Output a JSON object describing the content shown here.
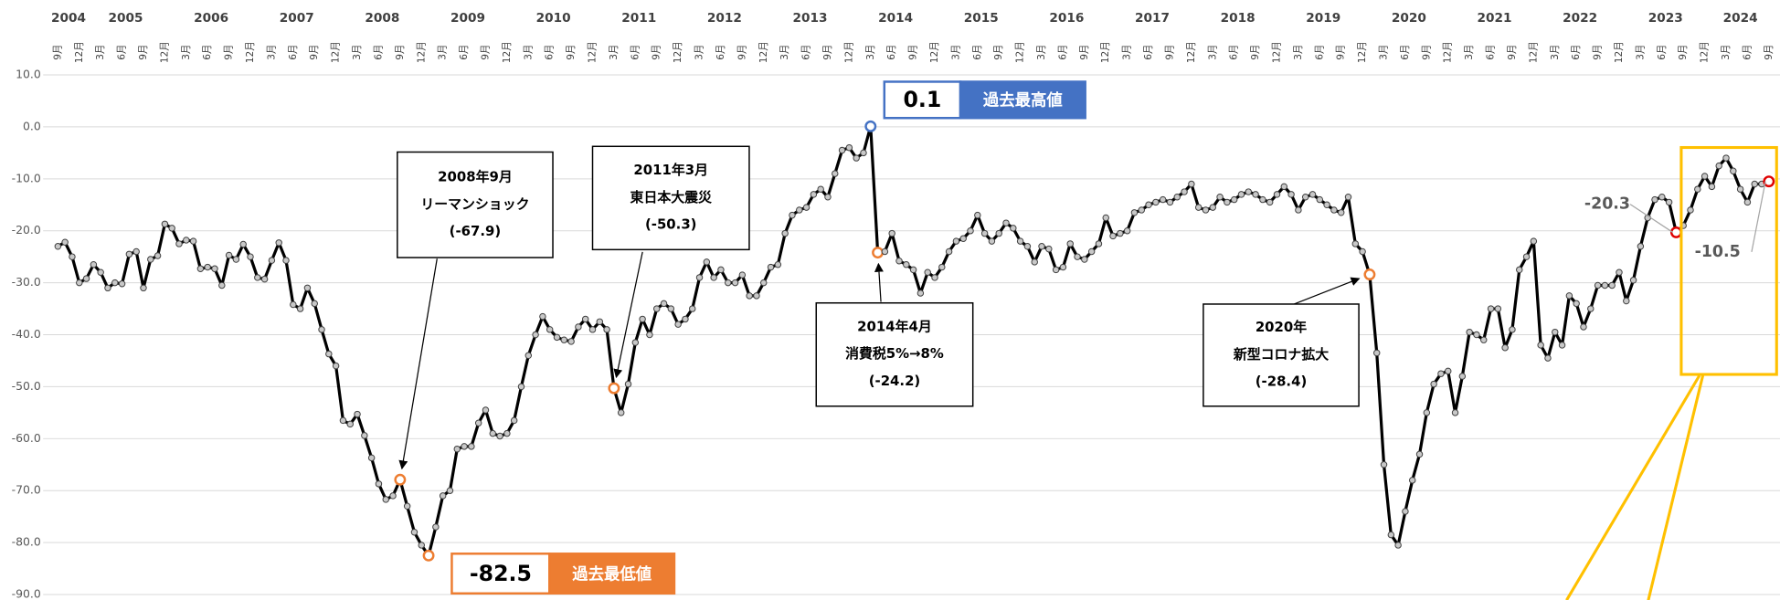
{
  "chart_data": {
    "type": "line",
    "x": [
      "2004-09",
      "2004-10",
      "2004-11",
      "2004-12",
      "2005-01",
      "2005-02",
      "2005-03",
      "2005-04",
      "2005-05",
      "2005-06",
      "2005-07",
      "2005-08",
      "2005-09",
      "2005-10",
      "2005-11",
      "2005-12",
      "2006-01",
      "2006-02",
      "2006-03",
      "2006-04",
      "2006-05",
      "2006-06",
      "2006-07",
      "2006-08",
      "2006-09",
      "2006-10",
      "2006-11",
      "2006-12",
      "2007-01",
      "2007-02",
      "2007-03",
      "2007-04",
      "2007-05",
      "2007-06",
      "2007-07",
      "2007-08",
      "2007-09",
      "2007-10",
      "2007-11",
      "2007-12",
      "2008-01",
      "2008-02",
      "2008-03",
      "2008-04",
      "2008-05",
      "2008-06",
      "2008-07",
      "2008-08",
      "2008-09",
      "2008-10",
      "2008-11",
      "2008-12",
      "2009-01",
      "2009-02",
      "2009-03",
      "2009-04",
      "2009-05",
      "2009-06",
      "2009-07",
      "2009-08",
      "2009-09",
      "2009-10",
      "2009-11",
      "2009-12",
      "2010-01",
      "2010-02",
      "2010-03",
      "2010-04",
      "2010-05",
      "2010-06",
      "2010-07",
      "2010-08",
      "2010-09",
      "2010-10",
      "2010-11",
      "2010-12",
      "2011-01",
      "2011-02",
      "2011-03",
      "2011-04",
      "2011-05",
      "2011-06",
      "2011-07",
      "2011-08",
      "2011-09",
      "2011-10",
      "2011-11",
      "2011-12",
      "2012-01",
      "2012-02",
      "2012-03",
      "2012-04",
      "2012-05",
      "2012-06",
      "2012-07",
      "2012-08",
      "2012-09",
      "2012-10",
      "2012-11",
      "2012-12",
      "2013-01",
      "2013-02",
      "2013-03",
      "2013-04",
      "2013-05",
      "2013-06",
      "2013-07",
      "2013-08",
      "2013-09",
      "2013-10",
      "2013-11",
      "2013-12",
      "2014-01",
      "2014-02",
      "2014-03",
      "2014-04",
      "2014-05",
      "2014-06",
      "2014-07",
      "2014-08",
      "2014-09",
      "2014-10",
      "2014-11",
      "2014-12",
      "2015-01",
      "2015-02",
      "2015-03",
      "2015-04",
      "2015-05",
      "2015-06",
      "2015-07",
      "2015-08",
      "2015-09",
      "2015-10",
      "2015-11",
      "2015-12",
      "2016-01",
      "2016-02",
      "2016-03",
      "2016-04",
      "2016-05",
      "2016-06",
      "2016-07",
      "2016-08",
      "2016-09",
      "2016-10",
      "2016-11",
      "2016-12",
      "2017-01",
      "2017-02",
      "2017-03",
      "2017-04",
      "2017-05",
      "2017-06",
      "2017-07",
      "2017-08",
      "2017-09",
      "2017-10",
      "2017-11",
      "2017-12",
      "2018-01",
      "2018-02",
      "2018-03",
      "2018-04",
      "2018-05",
      "2018-06",
      "2018-07",
      "2018-08",
      "2018-09",
      "2018-10",
      "2018-11",
      "2018-12",
      "2019-01",
      "2019-02",
      "2019-03",
      "2019-04",
      "2019-05",
      "2019-06",
      "2019-07",
      "2019-08",
      "2019-09",
      "2019-10",
      "2019-11",
      "2019-12",
      "2020-01",
      "2020-02",
      "2020-03",
      "2020-04",
      "2020-05",
      "2020-06",
      "2020-07",
      "2020-08",
      "2020-09",
      "2020-10",
      "2020-11",
      "2020-12",
      "2021-01",
      "2021-02",
      "2021-03",
      "2021-04",
      "2021-05",
      "2021-06",
      "2021-07",
      "2021-08",
      "2021-09",
      "2021-10",
      "2021-11",
      "2021-12",
      "2022-01",
      "2022-02",
      "2022-03",
      "2022-04",
      "2022-05",
      "2022-06",
      "2022-07",
      "2022-08",
      "2022-09",
      "2022-10",
      "2022-11",
      "2022-12",
      "2023-01",
      "2023-02",
      "2023-03",
      "2023-04",
      "2023-05",
      "2023-06",
      "2023-07",
      "2023-08",
      "2023-09",
      "2023-10",
      "2023-11",
      "2023-12",
      "2024-01",
      "2024-02",
      "2024-03",
      "2024-04",
      "2024-05",
      "2024-06",
      "2024-07",
      "2024-08",
      "2024-09"
    ],
    "values": [
      -23.0,
      -22.2,
      -25.0,
      -30.0,
      -29.2,
      -26.5,
      -28.0,
      -31.0,
      -30.0,
      -30.2,
      -24.5,
      -24.0,
      -31.0,
      -25.5,
      -24.8,
      -18.7,
      -19.5,
      -22.5,
      -21.8,
      -22.0,
      -27.3,
      -27.0,
      -27.3,
      -30.5,
      -24.7,
      -25.5,
      -22.6,
      -25.0,
      -29.0,
      -29.3,
      -25.7,
      -22.3,
      -25.7,
      -34.2,
      -35.0,
      -31.0,
      -34.0,
      -39.0,
      -43.7,
      -46.0,
      -56.5,
      -57.2,
      -55.3,
      -59.4,
      -63.7,
      -68.7,
      -71.7,
      -71.0,
      -67.9,
      -73.0,
      -78.0,
      -80.5,
      -82.5,
      -77.0,
      -71.0,
      -70.0,
      -62.0,
      -61.5,
      -61.5,
      -57.0,
      -54.5,
      -59.0,
      -59.5,
      -59.0,
      -56.5,
      -50.0,
      -44.0,
      -40.0,
      -36.5,
      -39.0,
      -40.5,
      -41.0,
      -41.3,
      -38.5,
      -37.0,
      -39.0,
      -37.5,
      -39.0,
      -50.3,
      -55.0,
      -49.5,
      -41.5,
      -37.0,
      -40.0,
      -35.0,
      -34.0,
      -35.0,
      -38.0,
      -37.0,
      -35.0,
      -29.0,
      -26.0,
      -29.0,
      -27.5,
      -30.0,
      -30.0,
      -28.5,
      -32.5,
      -32.5,
      -30.0,
      -27.0,
      -26.5,
      -20.5,
      -17.0,
      -16.0,
      -15.5,
      -13.0,
      -12.0,
      -13.5,
      -9.0,
      -4.5,
      -4.0,
      -6.0,
      -5.0,
      0.1,
      -24.2,
      -24.0,
      -20.5,
      -25.8,
      -26.5,
      -27.5,
      -32.0,
      -28.0,
      -29.0,
      -27.0,
      -24.0,
      -22.0,
      -21.5,
      -20.0,
      -17.0,
      -20.5,
      -22.0,
      -20.5,
      -18.5,
      -19.5,
      -22.0,
      -23.0,
      -26.0,
      -23.0,
      -23.5,
      -27.5,
      -27.0,
      -22.5,
      -25.0,
      -25.5,
      -24.0,
      -22.5,
      -17.5,
      -21.0,
      -20.5,
      -20.0,
      -16.5,
      -16.0,
      -15.0,
      -14.5,
      -14.0,
      -14.5,
      -13.5,
      -12.5,
      -11.0,
      -15.5,
      -16.0,
      -15.5,
      -13.5,
      -14.5,
      -14.0,
      -13.0,
      -12.5,
      -13.0,
      -14.0,
      -14.5,
      -13.0,
      -11.5,
      -13.0,
      -16.0,
      -13.5,
      -13.0,
      -14.0,
      -15.0,
      -16.0,
      -16.5,
      -13.5,
      -22.5,
      -24.0,
      -28.4,
      -43.5,
      -65.0,
      -78.5,
      -80.5,
      -74.0,
      -68.0,
      -63.0,
      -55.0,
      -49.5,
      -47.5,
      -47.0,
      -55.0,
      -48.0,
      -39.5,
      -40.0,
      -41.0,
      -35.0,
      -35.0,
      -42.5,
      -39.0,
      -27.5,
      -25.0,
      -22.0,
      -42.0,
      -44.5,
      -39.5,
      -42.0,
      -32.5,
      -34.0,
      -38.5,
      -35.0,
      -30.5,
      -30.5,
      -30.5,
      -28.0,
      -33.5,
      -29.5,
      -23.0,
      -17.5,
      -14.0,
      -13.5,
      -14.5,
      -20.3,
      -19.0,
      -16.0,
      -12.0,
      -9.5,
      -11.5,
      -7.5,
      -6.0,
      -8.5,
      -12.0,
      -14.5,
      -11.0,
      -11.0,
      -10.5
    ],
    "color": "#000000",
    "marker_color": "#c8c8c8",
    "ylim": [
      -90,
      10
    ],
    "yticks": [
      {
        "value": 10,
        "label": "10.0"
      },
      {
        "value": 0,
        "label": "0.0"
      },
      {
        "value": -10,
        "label": "-10.0"
      },
      {
        "value": -20,
        "label": "-20.0"
      },
      {
        "value": -30,
        "label": "-30.0"
      },
      {
        "value": -40,
        "label": "-40.0"
      },
      {
        "value": -50,
        "label": "-50.0"
      },
      {
        "value": -60,
        "label": "-60.0"
      },
      {
        "value": -70,
        "label": "-70.0"
      },
      {
        "value": -80,
        "label": "-80.0"
      },
      {
        "value": -90,
        "label": "-90.0"
      }
    ],
    "grid": true,
    "years": [
      "2004",
      "2005",
      "2006",
      "2007",
      "2008",
      "2009",
      "2010",
      "2011",
      "2012",
      "2013",
      "2014",
      "2015",
      "2016",
      "2017",
      "2018",
      "2019",
      "2020",
      "2021",
      "2022",
      "2023",
      "2024"
    ],
    "xticks": [
      {
        "value": "2004-09",
        "label": "9月"
      },
      {
        "value": "2004-12",
        "label": "12月"
      },
      {
        "value": "2005-03",
        "label": "3月"
      },
      {
        "value": "2005-06",
        "label": "6月"
      },
      {
        "value": "2005-09",
        "label": "9月"
      },
      {
        "value": "2005-12",
        "label": "12月"
      },
      {
        "value": "2006-03",
        "label": "3月"
      },
      {
        "value": "2006-06",
        "label": "6月"
      },
      {
        "value": "2006-09",
        "label": "9月"
      },
      {
        "value": "2006-12",
        "label": "12月"
      },
      {
        "value": "2007-03",
        "label": "3月"
      },
      {
        "value": "2007-06",
        "label": "6月"
      },
      {
        "value": "2007-09",
        "label": "9月"
      },
      {
        "value": "2007-12",
        "label": "12月"
      },
      {
        "value": "2008-03",
        "label": "3月"
      },
      {
        "value": "2008-06",
        "label": "6月"
      },
      {
        "value": "2008-09",
        "label": "9月"
      },
      {
        "value": "2008-12",
        "label": "12月"
      },
      {
        "value": "2009-03",
        "label": "3月"
      },
      {
        "value": "2009-06",
        "label": "6月"
      },
      {
        "value": "2009-09",
        "label": "9月"
      },
      {
        "value": "2009-12",
        "label": "12月"
      },
      {
        "value": "2010-03",
        "label": "3月"
      },
      {
        "value": "2010-06",
        "label": "6月"
      },
      {
        "value": "2010-09",
        "label": "9月"
      },
      {
        "value": "2010-12",
        "label": "12月"
      },
      {
        "value": "2011-03",
        "label": "3月"
      },
      {
        "value": "2011-06",
        "label": "6月"
      },
      {
        "value": "2011-09",
        "label": "9月"
      },
      {
        "value": "2011-12",
        "label": "12月"
      },
      {
        "value": "2012-03",
        "label": "3月"
      },
      {
        "value": "2012-06",
        "label": "6月"
      },
      {
        "value": "2012-09",
        "label": "9月"
      },
      {
        "value": "2012-12",
        "label": "12月"
      },
      {
        "value": "2013-03",
        "label": "3月"
      },
      {
        "value": "2013-06",
        "label": "6月"
      },
      {
        "value": "2013-09",
        "label": "9月"
      },
      {
        "value": "2013-12",
        "label": "12月"
      },
      {
        "value": "2014-03",
        "label": "3月"
      },
      {
        "value": "2014-06",
        "label": "6月"
      },
      {
        "value": "2014-09",
        "label": "9月"
      },
      {
        "value": "2014-12",
        "label": "12月"
      },
      {
        "value": "2015-03",
        "label": "3月"
      },
      {
        "value": "2015-06",
        "label": "6月"
      },
      {
        "value": "2015-09",
        "label": "9月"
      },
      {
        "value": "2015-12",
        "label": "12月"
      },
      {
        "value": "2016-03",
        "label": "3月"
      },
      {
        "value": "2016-06",
        "label": "6月"
      },
      {
        "value": "2016-09",
        "label": "9月"
      },
      {
        "value": "2016-12",
        "label": "12月"
      },
      {
        "value": "2017-03",
        "label": "3月"
      },
      {
        "value": "2017-06",
        "label": "6月"
      },
      {
        "value": "2017-09",
        "label": "9月"
      },
      {
        "value": "2017-12",
        "label": "12月"
      },
      {
        "value": "2018-03",
        "label": "3月"
      },
      {
        "value": "2018-06",
        "label": "6月"
      },
      {
        "value": "2018-09",
        "label": "9月"
      },
      {
        "value": "2018-12",
        "label": "12月"
      },
      {
        "value": "2019-03",
        "label": "3月"
      },
      {
        "value": "2019-06",
        "label": "6月"
      },
      {
        "value": "2019-09",
        "label": "9月"
      },
      {
        "value": "2019-12",
        "label": "12月"
      },
      {
        "value": "2020-03",
        "label": "3月"
      },
      {
        "value": "2020-06",
        "label": "6月"
      },
      {
        "value": "2020-09",
        "label": "9月"
      },
      {
        "value": "2020-12",
        "label": "12月"
      },
      {
        "value": "2021-03",
        "label": "3月"
      },
      {
        "value": "2021-06",
        "label": "6月"
      },
      {
        "value": "2021-09",
        "label": "9月"
      },
      {
        "value": "2021-12",
        "label": "12月"
      },
      {
        "value": "2022-03",
        "label": "3月"
      },
      {
        "value": "2022-06",
        "label": "6月"
      },
      {
        "value": "2022-09",
        "label": "9月"
      },
      {
        "value": "2022-12",
        "label": "12月"
      },
      {
        "value": "2023-03",
        "label": "3月"
      },
      {
        "value": "2023-06",
        "label": "6月"
      },
      {
        "value": "2023-09",
        "label": "9月"
      },
      {
        "value": "2023-12",
        "label": "12月"
      },
      {
        "value": "2024-03",
        "label": "3月"
      },
      {
        "value": "2024-06",
        "label": "6月"
      },
      {
        "value": "2024-09",
        "label": "9月"
      }
    ],
    "highlights": [
      {
        "x": "2008-09",
        "color": "#ed7d31"
      },
      {
        "x": "2009-01",
        "color": "#ed7d31"
      },
      {
        "x": "2011-03",
        "color": "#ed7d31"
      },
      {
        "x": "2014-03",
        "color": "#4472c4"
      },
      {
        "x": "2014-04",
        "color": "#ed7d31"
      },
      {
        "x": "2020-01",
        "color": "#ed7d31"
      },
      {
        "x": "2023-08",
        "color": "#e00000"
      },
      {
        "x": "2024-09",
        "color": "#e00000"
      }
    ],
    "annotations": [
      {
        "x": "2008-09",
        "lines": [
          "2008年9月",
          "リーマンショック",
          "(-67.9)"
        ]
      },
      {
        "x": "2011-03",
        "lines": [
          "2011年3月",
          "東日本大震災",
          "(-50.3)"
        ]
      },
      {
        "x": "2014-04",
        "lines": [
          "2014年4月",
          "消費税5%→8%",
          "(-24.2)"
        ]
      },
      {
        "x": "2020-01",
        "lines": [
          "2020年",
          "新型コロナ拡大",
          "(-28.4)"
        ]
      }
    ],
    "badges": [
      {
        "x": "2014-03",
        "label": "過去最高値",
        "color": "#4472c4"
      },
      {
        "x": "2009-01",
        "label": "過去最低値",
        "color": "#ed7d31"
      }
    ],
    "labeled_points": [
      "2023-08",
      "2024-09"
    ],
    "focus_color": "#ffc000"
  }
}
